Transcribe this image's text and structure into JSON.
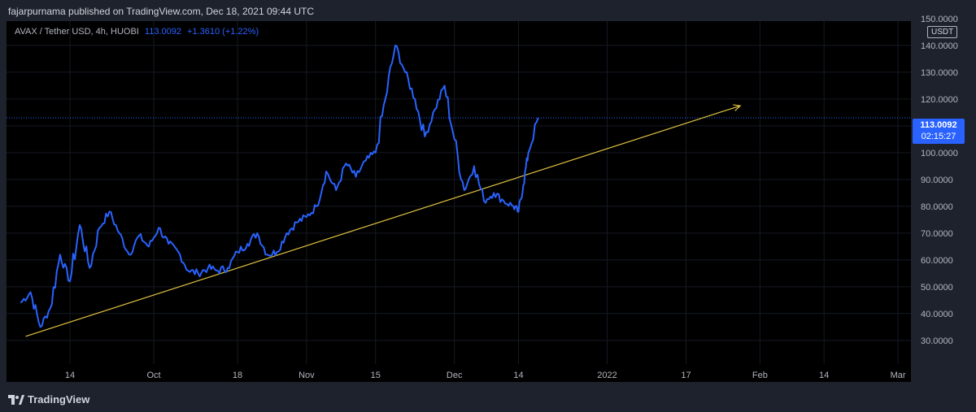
{
  "header": {
    "publish_text": "fajarpurnama published on TradingView.com, Dec 18, 2021 09:44 UTC"
  },
  "legend": {
    "symbol": "AVAX / Tether USD, 4h, HUOBI",
    "last": "113.0092",
    "change": "+1.3610 (+1.22%)"
  },
  "price_scale": {
    "currency_label": "USDT",
    "current_price": "113.0092",
    "countdown": "02:15:27"
  },
  "footer": {
    "brand": "TradingView"
  },
  "colors": {
    "background": "#000000",
    "price_line": "#2962ff",
    "trend_line": "#e0c341",
    "text": "#b2b5be"
  },
  "chart_data": {
    "type": "line",
    "title": "AVAX / Tether USD, 4h, HUOBI",
    "x": [
      "Sep 4",
      "Sep 6",
      "Sep 8",
      "Sep 10",
      "Sep 12",
      "Sep 14",
      "Sep 16",
      "Sep 18",
      "Sep 20",
      "Sep 22",
      "Sep 24",
      "Sep 26",
      "Sep 28",
      "Sep 30",
      "Oct 2",
      "Oct 4",
      "Oct 6",
      "Oct 8",
      "Oct 10",
      "Oct 12",
      "Oct 14",
      "Oct 16",
      "Oct 18",
      "Oct 20",
      "Oct 22",
      "Oct 24",
      "Oct 26",
      "Oct 28",
      "Oct 30",
      "Nov 1",
      "Nov 3",
      "Nov 5",
      "Nov 7",
      "Nov 9",
      "Nov 11",
      "Nov 13",
      "Nov 15",
      "Nov 17",
      "Nov 19",
      "Nov 21",
      "Nov 23",
      "Nov 25",
      "Nov 27",
      "Nov 29",
      "Dec 1",
      "Dec 3",
      "Dec 5",
      "Dec 7",
      "Dec 9",
      "Dec 11",
      "Dec 13",
      "Dec 14",
      "Dec 15",
      "Dec 16",
      "Dec 18"
    ],
    "series": [
      {
        "values": [
          44,
          48,
          35,
          42,
          62,
          52,
          73,
          57,
          72,
          78,
          70,
          62,
          69,
          65,
          72,
          66,
          63,
          56,
          55,
          57,
          56,
          57,
          63,
          66,
          70,
          62,
          63,
          70,
          74,
          76,
          80,
          93,
          86,
          96,
          91,
          97,
          100,
          120,
          140,
          130,
          120,
          106,
          116,
          125,
          105,
          86,
          95,
          82,
          85,
          82,
          80,
          78,
          88,
          100,
          113
        ]
      }
    ],
    "trend_line": {
      "x": [
        "Sep 5",
        "Jan 28"
      ],
      "y": [
        31.5,
        117.5
      ]
    },
    "yticks": [
      "30.0000",
      "40.0000",
      "50.0000",
      "60.0000",
      "70.0000",
      "80.0000",
      "90.0000",
      "100.0000",
      "110.0000",
      "120.0000",
      "130.0000",
      "140.0000",
      "150.0000"
    ],
    "xticks": [
      "14",
      "Oct",
      "18",
      "Nov",
      "15",
      "Dec",
      "14",
      "2022",
      "17",
      "Feb",
      "14",
      "Mar"
    ],
    "ylim": [
      26,
      152
    ],
    "grid": true
  }
}
